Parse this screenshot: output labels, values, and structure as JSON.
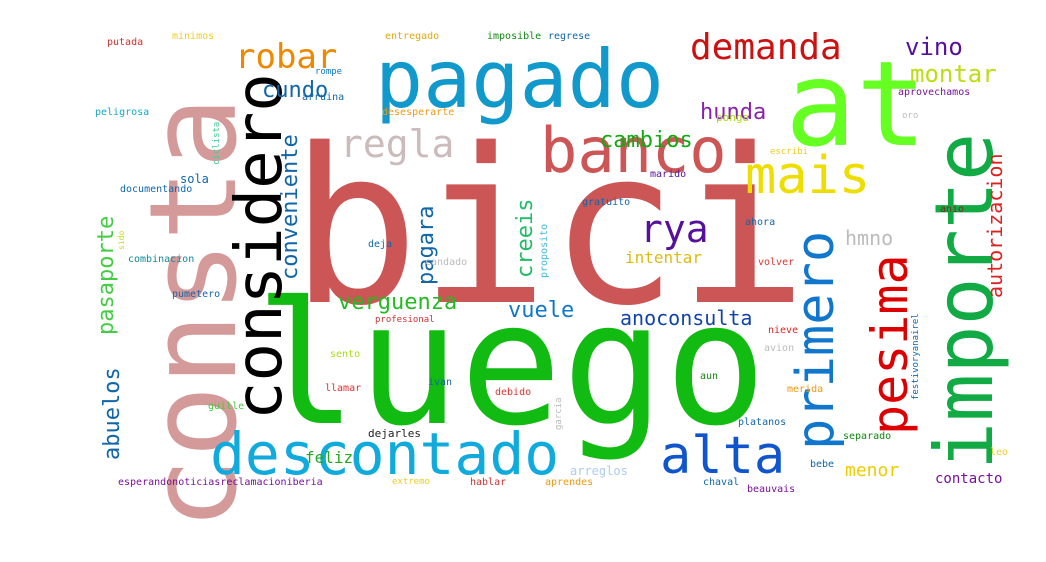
{
  "words": [
    {
      "text": "bici",
      "color": "#cc5555"
    },
    {
      "text": "luego",
      "color": "#11bb11"
    },
    {
      "text": "consta",
      "color": "#d49999"
    },
    {
      "text": "at",
      "color": "#66ff22"
    },
    {
      "text": "importe",
      "color": "#11aa44"
    },
    {
      "text": "pagado",
      "color": "#1199cc"
    },
    {
      "text": "considero",
      "color": "#000000"
    },
    {
      "text": "banco",
      "color": "#cc5555"
    },
    {
      "text": "descontado",
      "color": "#11aadd"
    },
    {
      "text": "pesima",
      "color": "#dd0000"
    },
    {
      "text": "primero",
      "color": "#1177cc"
    },
    {
      "text": "alta",
      "color": "#1155cc"
    },
    {
      "text": "mais",
      "color": "#eedd00"
    },
    {
      "text": "demanda",
      "color": "#cc1111"
    },
    {
      "text": "regla",
      "color": "#ccbbbb"
    },
    {
      "text": "rya",
      "color": "#551199"
    },
    {
      "text": "robar",
      "color": "#ee8800"
    },
    {
      "text": "vino",
      "color": "#551199"
    },
    {
      "text": "montar",
      "color": "#bbdd11"
    },
    {
      "text": "hunda",
      "color": "#8822aa"
    },
    {
      "text": "cundo",
      "color": "#1166aa"
    },
    {
      "text": "cambios",
      "color": "#11aa11"
    },
    {
      "text": "hmno",
      "color": "#bbbbbb"
    },
    {
      "text": "autorizacion",
      "color": "#dd2222"
    },
    {
      "text": "conveniente",
      "color": "#1166aa"
    },
    {
      "text": "pagara",
      "color": "#1166aa"
    },
    {
      "text": "creeis",
      "color": "#22bb66"
    },
    {
      "text": "pasaporte",
      "color": "#44cc44"
    },
    {
      "text": "abuelos",
      "color": "#1166aa"
    },
    {
      "text": "verguenza",
      "color": "#22bb22"
    },
    {
      "text": "vuele",
      "color": "#1177cc"
    },
    {
      "text": "anoconsulta",
      "color": "#1144aa"
    },
    {
      "text": "intentar",
      "color": "#ddbb11"
    },
    {
      "text": "menor",
      "color": "#eecc00"
    },
    {
      "text": "feliz",
      "color": "#22aa22"
    },
    {
      "text": "contacto",
      "color": "#771199"
    },
    {
      "text": "sola",
      "color": "#1166aa"
    },
    {
      "text": "arreglos",
      "color": "#aaccee"
    },
    {
      "text": "ponga",
      "color": "#aadd11"
    },
    {
      "text": "dejarles",
      "color": "#222222"
    },
    {
      "text": "putada",
      "color": "#cc3333"
    },
    {
      "text": "minimos",
      "color": "#eecc22"
    },
    {
      "text": "entregado",
      "color": "#ddaa11"
    },
    {
      "text": "imposible",
      "color": "#118811"
    },
    {
      "text": "regrese",
      "color": "#1166aa"
    },
    {
      "text": "rompe",
      "color": "#1177cc"
    },
    {
      "text": "arruina",
      "color": "#1166aa"
    },
    {
      "text": "aprovechamos",
      "color": "#771199"
    },
    {
      "text": "peligrosa",
      "color": "#11aacc"
    },
    {
      "text": "ciclista",
      "color": "#44cc99"
    },
    {
      "text": "desesperarte",
      "color": "#ee9911"
    },
    {
      "text": "oro",
      "color": "#bbbbbb"
    },
    {
      "text": "escribi",
      "color": "#eecc22"
    },
    {
      "text": "documentando",
      "color": "#1166aa"
    },
    {
      "text": "marido",
      "color": "#551199"
    },
    {
      "text": "gratuito",
      "color": "#1166aa"
    },
    {
      "text": "proposito",
      "color": "#44bbdd"
    },
    {
      "text": "sido",
      "color": "#bbdd22"
    },
    {
      "text": "ahora",
      "color": "#1166aa"
    },
    {
      "text": "anio",
      "color": "#882222"
    },
    {
      "text": "deja",
      "color": "#1166aa"
    },
    {
      "text": "combinacion",
      "color": "#118899"
    },
    {
      "text": "candado",
      "color": "#bbbbbb"
    },
    {
      "text": "volver",
      "color": "#dd3333"
    },
    {
      "text": "pumetero",
      "color": "#1166aa"
    },
    {
      "text": "profesional",
      "color": "#cc3333"
    },
    {
      "text": "nieve",
      "color": "#dd2222"
    },
    {
      "text": "avion",
      "color": "#bbbbbb"
    },
    {
      "text": "festivoryanairel",
      "color": "#1166aa"
    },
    {
      "text": "sento",
      "color": "#aadd11"
    },
    {
      "text": "llamar",
      "color": "#dd3333"
    },
    {
      "text": "ivan",
      "color": "#1166aa"
    },
    {
      "text": "debido",
      "color": "#dd3333"
    },
    {
      "text": "aun",
      "color": "#118811"
    },
    {
      "text": "merida",
      "color": "#ee9911"
    },
    {
      "text": "guille",
      "color": "#44cc44"
    },
    {
      "text": "garcia",
      "color": "#bbbbbb"
    },
    {
      "text": "platanos",
      "color": "#1166aa"
    },
    {
      "text": "separado",
      "color": "#118811"
    },
    {
      "text": "leo",
      "color": "#eecc22"
    },
    {
      "text": "bebe",
      "color": "#1166aa"
    },
    {
      "text": "esperandonoticiasreclamacioniberia",
      "color": "#771199"
    },
    {
      "text": "extremo",
      "color": "#eecc22"
    },
    {
      "text": "hablar",
      "color": "#cc3333"
    },
    {
      "text": "aprendes",
      "color": "#ee9911"
    },
    {
      "text": "chaval",
      "color": "#1166aa"
    },
    {
      "text": "beauvais",
      "color": "#771199"
    }
  ]
}
